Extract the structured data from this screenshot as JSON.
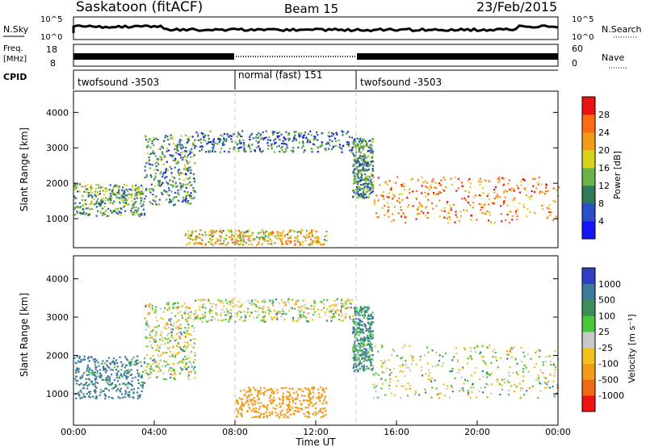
{
  "header": {
    "station": "Saskatoon (fitACF)",
    "beam": "Beam 15",
    "date": "23/Feb/2015"
  },
  "left_labels": {
    "nsky": "N.Sky",
    "freq": "Freq.",
    "freq_unit": "[MHz]",
    "cpid": "CPID"
  },
  "right_labels": {
    "nsearch": "N.Search",
    "nave": "Nave"
  },
  "noise_ticks": {
    "left": [
      "10^5",
      "10^0"
    ],
    "right": [
      "10^5",
      "10^0"
    ]
  },
  "freq_ticks": [
    "18",
    "8"
  ],
  "nave_ticks": [
    "60",
    "0"
  ],
  "cpid_segments": [
    {
      "label": "twofsound -3503",
      "start_h": 0,
      "end_h": 8
    },
    {
      "label": "normal (fast) 151",
      "start_h": 8,
      "end_h": 14
    },
    {
      "label": "twofsound -3503",
      "start_h": 14,
      "end_h": 24
    }
  ],
  "colors": {
    "cut_line": "#c8c8c8"
  },
  "chart_data": [
    {
      "type": "heatmap",
      "title": "Beam 15",
      "xlabel": "Time UT",
      "ylabel": "Slant Range [km]",
      "xlim": [
        0,
        24
      ],
      "ylim": [
        180,
        4600
      ],
      "x_ticks": [
        "00:00",
        "04:00",
        "08:00",
        "12:00",
        "16:00",
        "20:00",
        "00:00"
      ],
      "y_ticks": [
        "1000",
        "2000",
        "3000",
        "4000"
      ],
      "colorbar": {
        "label": "Power [dB]",
        "ticks": [
          "4",
          "8",
          "12",
          "16",
          "20",
          "24",
          "28"
        ],
        "range": [
          0,
          30
        ],
        "colors": [
          "#1414ff",
          "#2a50c8",
          "#2e7a55",
          "#6ab24a",
          "#d9d21a",
          "#f59b1a",
          "#ff6a12",
          "#ee1111"
        ]
      },
      "echo_regions": [
        {
          "name": "evening band",
          "t": [
            0.0,
            3.5
          ],
          "range_km": [
            1100,
            2000
          ],
          "level": 12
        },
        {
          "name": "rising arc",
          "t": [
            3.5,
            6.0
          ],
          "range_km": [
            1400,
            3400
          ],
          "level": 10
        },
        {
          "name": "high plateau",
          "t": [
            6.0,
            13.8
          ],
          "range_km": [
            2900,
            3500
          ],
          "level": 8
        },
        {
          "name": "near range",
          "t": [
            5.5,
            12.5
          ],
          "range_km": [
            280,
            700
          ],
          "level": 18
        },
        {
          "name": "descending arc",
          "t": [
            13.8,
            14.8
          ],
          "range_km": [
            1600,
            3300
          ],
          "level": 10
        },
        {
          "name": "morning band",
          "t": [
            14.8,
            24.0
          ],
          "range_km": [
            900,
            2200
          ],
          "level": 22
        }
      ]
    },
    {
      "type": "heatmap",
      "xlabel": "Time UT",
      "ylabel": "Slant Range [km]",
      "xlim": [
        0,
        24
      ],
      "ylim": [
        180,
        4600
      ],
      "x_ticks": [
        "00:00",
        "04:00",
        "08:00",
        "12:00",
        "16:00",
        "20:00",
        "00:00"
      ],
      "y_ticks": [
        "1000",
        "2000",
        "3000",
        "4000"
      ],
      "colorbar": {
        "label": "Velocity [m s⁻¹]",
        "ticks": [
          "1000",
          "500",
          "100",
          "25",
          "-25",
          "-100",
          "-500",
          "-1000"
        ],
        "colors": [
          "#2e3fc6",
          "#3d7a9a",
          "#3e8d5a",
          "#48c63c",
          "#c8c8c8",
          "#f2c21c",
          "#f09a18",
          "#ef6a14",
          "#ee1414"
        ]
      },
      "echo_regions": [
        {
          "name": "evening band",
          "t": [
            0.0,
            3.5
          ],
          "range_km": [
            900,
            2000
          ],
          "velocity": 200
        },
        {
          "name": "ground scatter arc",
          "t": [
            3.5,
            6.0
          ],
          "range_km": [
            1400,
            3400
          ],
          "velocity": 0
        },
        {
          "name": "high plateau",
          "t": [
            6.0,
            13.8
          ],
          "range_km": [
            2900,
            3500
          ],
          "velocity": 0
        },
        {
          "name": "near range",
          "t": [
            8.0,
            12.5
          ],
          "range_km": [
            400,
            1200
          ],
          "velocity": -300
        },
        {
          "name": "descending arc",
          "t": [
            13.8,
            14.8
          ],
          "range_km": [
            1600,
            3300
          ],
          "velocity": 150
        },
        {
          "name": "morning band",
          "t": [
            14.8,
            24.0
          ],
          "range_km": [
            900,
            2300
          ],
          "velocity": 0
        }
      ]
    }
  ]
}
